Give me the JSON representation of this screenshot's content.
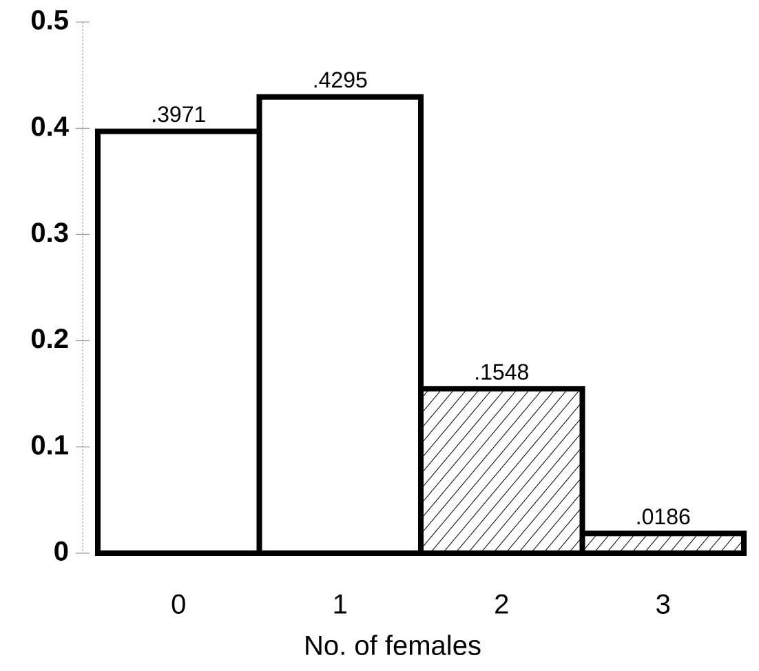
{
  "chart_data": {
    "type": "bar",
    "categories": [
      "0",
      "1",
      "2",
      "3"
    ],
    "values": [
      0.3971,
      0.4295,
      0.1548,
      0.0186
    ],
    "value_labels": [
      ".3971",
      ".4295",
      ".1548",
      ".0186"
    ],
    "hatched": [
      false,
      false,
      true,
      true
    ],
    "color": "#ffffff",
    "xlabel": "No. of females",
    "ylim": [
      0,
      0.5
    ],
    "yticks": [
      0,
      0.1,
      0.2,
      0.3,
      0.4,
      0.5
    ]
  }
}
